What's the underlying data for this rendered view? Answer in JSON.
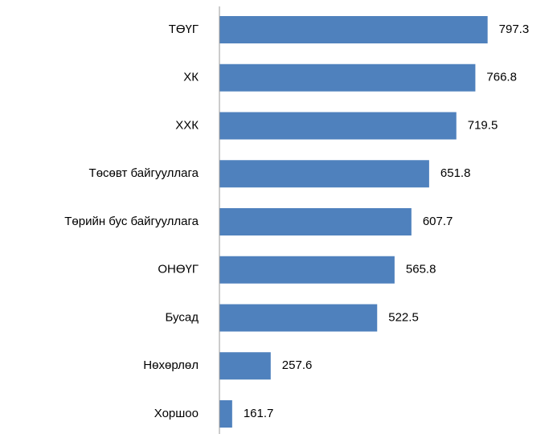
{
  "chart_data": {
    "type": "barh",
    "categories": [
      "ТӨҮГ",
      "ХК",
      "ХХК",
      "Төсөвт байгууллага",
      "Төрийн бус байгууллага",
      "ОНӨҮГ",
      "Бусад",
      "Нөхөрлөл",
      "Хоршоо"
    ],
    "values": [
      797.3,
      766.8,
      719.5,
      651.8,
      607.7,
      565.8,
      522.5,
      257.6,
      161.7
    ],
    "color": "#4f81bd",
    "xlim": [
      130,
      950
    ]
  }
}
